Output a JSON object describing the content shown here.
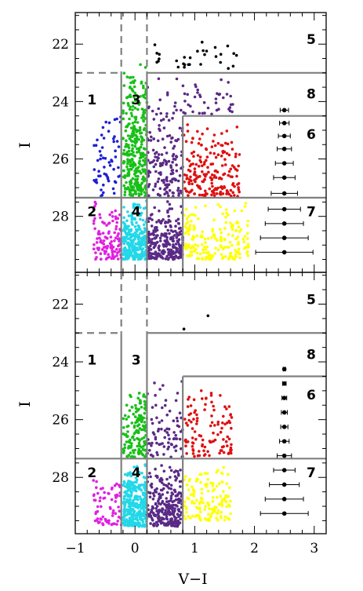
{
  "chart_data": [
    {
      "type": "scatter",
      "title": "",
      "xlabel": "V−I",
      "ylabel": "I",
      "xlim": [
        -1.0,
        3.2
      ],
      "ylim": [
        29.95,
        20.9
      ],
      "x_ticks": [
        "−1",
        "0",
        "1",
        "2",
        "3"
      ],
      "y_ticks": [
        "22",
        "24",
        "26",
        "28"
      ],
      "y_tick_values": [
        22,
        24,
        26,
        28
      ],
      "x_tick_values": [
        -1,
        0,
        1,
        2,
        3
      ],
      "region_labels": [
        {
          "label": "1",
          "x": -0.72,
          "y": 24.1
        },
        {
          "label": "3",
          "x": 0.02,
          "y": 24.1
        },
        {
          "label": "5",
          "x": 2.95,
          "y": 22.0
        },
        {
          "label": "8",
          "x": 2.95,
          "y": 23.9
        },
        {
          "label": "6",
          "x": 2.95,
          "y": 25.3
        },
        {
          "label": "2",
          "x": -0.72,
          "y": 28.0
        },
        {
          "label": "4",
          "x": 0.02,
          "y": 28.0
        },
        {
          "label": "7",
          "x": 2.95,
          "y": 28.0
        }
      ],
      "dashed_lines": [
        {
          "x1": -0.23,
          "y1": 20.9,
          "x2": -0.23,
          "y2": 23.0
        },
        {
          "x1": 0.2,
          "y1": 20.9,
          "x2": 0.2,
          "y2": 23.0
        },
        {
          "x1": -1.0,
          "y1": 23.0,
          "x2": -0.23,
          "y2": 23.0
        }
      ],
      "solid_lines": [
        {
          "x1": -0.23,
          "y1": 23.0,
          "x2": -0.23,
          "y2": 29.95
        },
        {
          "x1": 0.2,
          "y1": 23.0,
          "x2": 0.2,
          "y2": 29.95
        },
        {
          "x1": 0.2,
          "y1": 23.0,
          "x2": 3.2,
          "y2": 23.0
        },
        {
          "x1": 0.8,
          "y1": 24.5,
          "x2": 3.2,
          "y2": 24.5
        },
        {
          "x1": 0.8,
          "y1": 24.5,
          "x2": 0.8,
          "y2": 29.95
        },
        {
          "x1": -1.0,
          "y1": 27.35,
          "x2": 3.2,
          "y2": 27.35
        }
      ],
      "error_bars": {
        "x": 2.5,
        "y": [
          24.3,
          24.75,
          25.2,
          25.65,
          26.15,
          26.65,
          27.2,
          27.75,
          28.25,
          28.75,
          29.25
        ],
        "err": [
          0.07,
          0.08,
          0.1,
          0.12,
          0.15,
          0.18,
          0.22,
          0.27,
          0.32,
          0.4,
          0.48
        ]
      },
      "series": [
        {
          "region": "1",
          "color": "#1f1fd6",
          "count": 60,
          "x_range": [
            -0.7,
            -0.23
          ],
          "y_range": [
            24.0,
            27.3
          ]
        },
        {
          "region": "2",
          "color": "#e020e0",
          "count": 110,
          "x_range": [
            -0.7,
            -0.23
          ],
          "y_range": [
            27.45,
            29.5
          ]
        },
        {
          "region": "3",
          "color": "#18c018",
          "count": 340,
          "x_range": [
            -0.2,
            0.2
          ],
          "y_range": [
            22.2,
            27.3
          ]
        },
        {
          "region": "4",
          "color": "#22d8e8",
          "count": 280,
          "x_range": [
            -0.2,
            0.2
          ],
          "y_range": [
            27.45,
            29.5
          ]
        },
        {
          "region": "5",
          "color": "#000000",
          "count": 30,
          "x_range": [
            0.3,
            1.7
          ],
          "y_range": [
            21.8,
            22.85
          ]
        },
        {
          "region": "8",
          "color": "#5a2a86",
          "count": 160,
          "x_range": [
            0.2,
            0.8
          ],
          "y_range": [
            23.1,
            27.3
          ]
        },
        {
          "region": "8b",
          "color": "#5a2a86",
          "count": 40,
          "x_range": [
            0.8,
            1.7
          ],
          "y_range": [
            23.1,
            24.45
          ]
        },
        {
          "region": "7L",
          "color": "#5a2a86",
          "count": 260,
          "x_range": [
            0.2,
            0.8
          ],
          "y_range": [
            27.45,
            29.5
          ]
        },
        {
          "region": "6",
          "color": "#e01010",
          "count": 190,
          "x_range": [
            0.82,
            1.75
          ],
          "y_range": [
            24.6,
            27.3
          ]
        },
        {
          "region": "7",
          "color": "#ffff00",
          "count": 190,
          "x_range": [
            0.82,
            1.9
          ],
          "y_range": [
            27.45,
            29.5
          ]
        }
      ]
    },
    {
      "type": "scatter",
      "title": "",
      "xlabel": "V−I",
      "ylabel": "I",
      "xlim": [
        -1.0,
        3.2
      ],
      "ylim": [
        29.95,
        20.9
      ],
      "x_ticks": [
        "−1",
        "0",
        "1",
        "2",
        "3"
      ],
      "y_ticks": [
        "22",
        "24",
        "26",
        "28"
      ],
      "y_tick_values": [
        22,
        24,
        26,
        28
      ],
      "x_tick_values": [
        -1,
        0,
        1,
        2,
        3
      ],
      "region_labels": [
        {
          "label": "1",
          "x": -0.72,
          "y": 24.1
        },
        {
          "label": "3",
          "x": 0.02,
          "y": 24.1
        },
        {
          "label": "5",
          "x": 2.95,
          "y": 22.0
        },
        {
          "label": "8",
          "x": 2.95,
          "y": 23.9
        },
        {
          "label": "6",
          "x": 2.95,
          "y": 25.3
        },
        {
          "label": "2",
          "x": -0.72,
          "y": 28.0
        },
        {
          "label": "4",
          "x": 0.02,
          "y": 28.0
        },
        {
          "label": "7",
          "x": 2.95,
          "y": 28.0
        }
      ],
      "dashed_lines": [
        {
          "x1": -0.23,
          "y1": 20.9,
          "x2": -0.23,
          "y2": 23.0
        },
        {
          "x1": 0.2,
          "y1": 20.9,
          "x2": 0.2,
          "y2": 23.0
        },
        {
          "x1": -1.0,
          "y1": 23.0,
          "x2": -0.23,
          "y2": 23.0
        }
      ],
      "solid_lines": [
        {
          "x1": -0.23,
          "y1": 23.0,
          "x2": -0.23,
          "y2": 29.95
        },
        {
          "x1": 0.2,
          "y1": 23.0,
          "x2": 0.2,
          "y2": 29.95
        },
        {
          "x1": 0.2,
          "y1": 23.0,
          "x2": 3.2,
          "y2": 23.0
        },
        {
          "x1": 0.8,
          "y1": 24.5,
          "x2": 3.2,
          "y2": 24.5
        },
        {
          "x1": 0.8,
          "y1": 24.5,
          "x2": 0.8,
          "y2": 29.95
        },
        {
          "x1": -1.0,
          "y1": 27.35,
          "x2": 3.2,
          "y2": 27.35
        }
      ],
      "error_bars": {
        "x": 2.5,
        "y": [
          24.25,
          24.75,
          25.25,
          25.75,
          26.25,
          26.75,
          27.25,
          27.75,
          28.25,
          28.75,
          29.25
        ],
        "err": [
          0.02,
          0.03,
          0.04,
          0.05,
          0.06,
          0.08,
          0.12,
          0.18,
          0.25,
          0.32,
          0.4
        ]
      },
      "series": [
        {
          "region": "2",
          "color": "#e020e0",
          "count": 70,
          "x_range": [
            -0.7,
            -0.23
          ],
          "y_range": [
            27.9,
            29.7
          ]
        },
        {
          "region": "3",
          "color": "#18c018",
          "count": 150,
          "x_range": [
            -0.2,
            0.2
          ],
          "y_range": [
            24.6,
            27.3
          ]
        },
        {
          "region": "4",
          "color": "#22d8e8",
          "count": 320,
          "x_range": [
            -0.2,
            0.2
          ],
          "y_range": [
            27.45,
            29.7
          ]
        },
        {
          "region": "5",
          "color": "#000000",
          "count": 2,
          "x_range": [
            0.3,
            1.5
          ],
          "y_range": [
            21.9,
            22.95
          ]
        },
        {
          "region": "8",
          "color": "#5a2a86",
          "count": 80,
          "x_range": [
            0.2,
            0.8
          ],
          "y_range": [
            24.5,
            27.3
          ]
        },
        {
          "region": "7L",
          "color": "#5a2a86",
          "count": 270,
          "x_range": [
            0.2,
            0.8
          ],
          "y_range": [
            27.45,
            29.7
          ]
        },
        {
          "region": "6",
          "color": "#e01010",
          "count": 110,
          "x_range": [
            0.82,
            1.65
          ],
          "y_range": [
            24.6,
            27.3
          ]
        },
        {
          "region": "7",
          "color": "#ffff00",
          "count": 140,
          "x_range": [
            0.82,
            1.6
          ],
          "y_range": [
            27.45,
            29.5
          ]
        }
      ]
    }
  ]
}
